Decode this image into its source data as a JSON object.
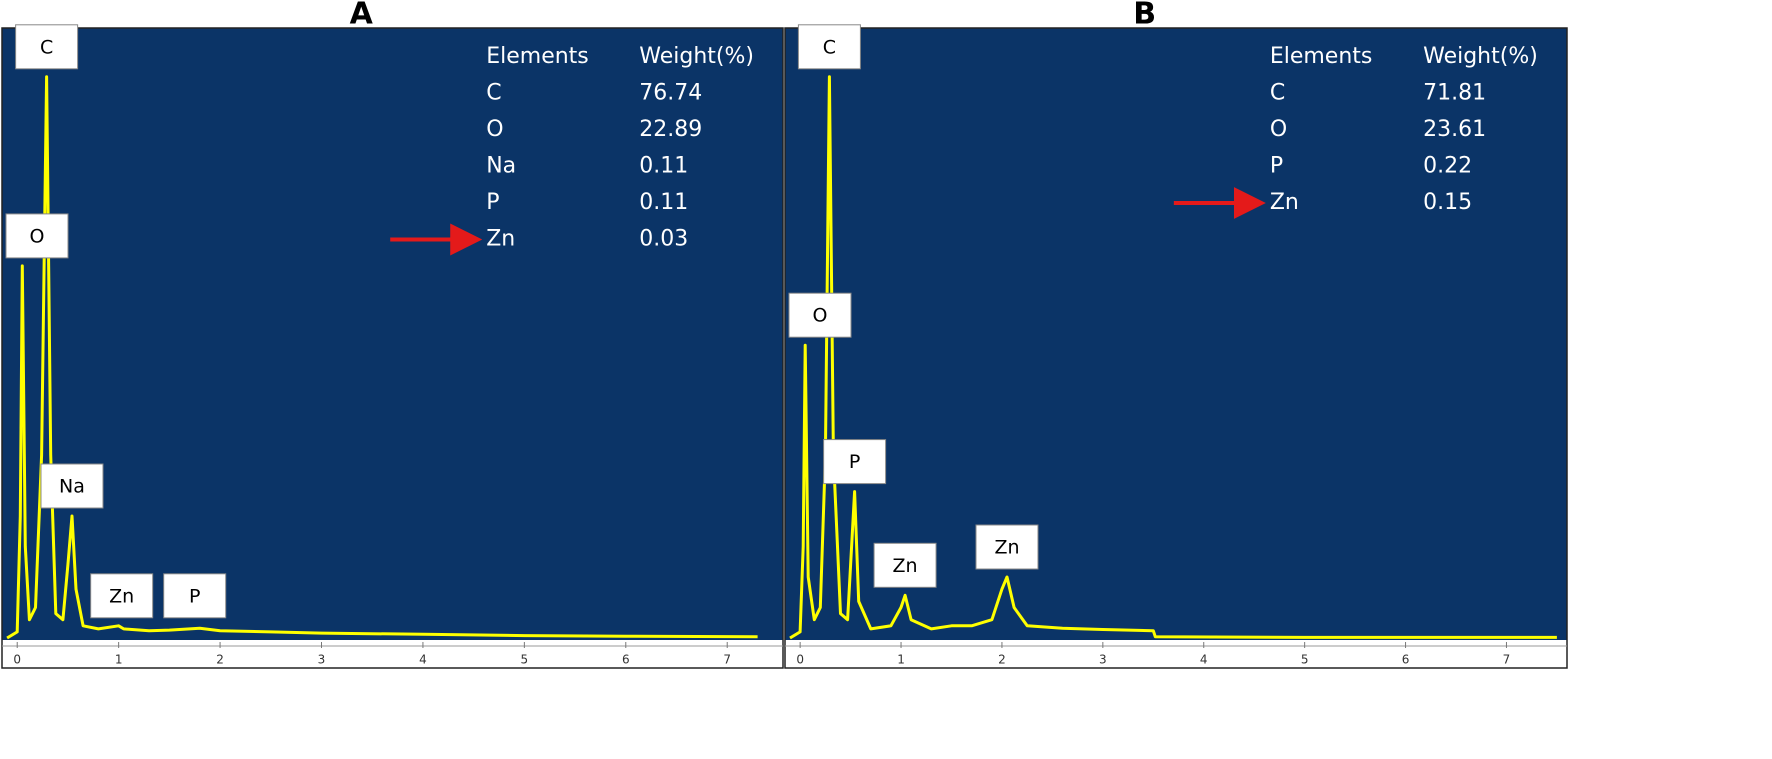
{
  "chart_data": [
    {
      "type": "spectrum",
      "title": "A",
      "color": "#ffff00",
      "xlim": [
        -0.15,
        7.55
      ],
      "xticks": [
        0,
        1,
        2,
        3,
        4,
        5,
        6,
        7
      ],
      "ylim": [
        0,
        100
      ],
      "x": [
        -0.1,
        0,
        0.03,
        0.05,
        0.08,
        0.12,
        0.18,
        0.24,
        0.29,
        0.33,
        0.38,
        0.45,
        0.5,
        0.54,
        0.58,
        0.65,
        0.8,
        1.0,
        1.05,
        1.3,
        1.5,
        1.8,
        2.0,
        2.5,
        3,
        4,
        5,
        6,
        7.3
      ],
      "values": [
        0,
        1,
        20,
        61,
        15,
        3,
        5,
        30,
        92,
        30,
        4,
        3,
        12,
        20,
        8,
        2,
        1.5,
        2,
        1.5,
        1.2,
        1.3,
        1.6,
        1.2,
        1,
        0.8,
        0.6,
        0.4,
        0.3,
        0.2
      ],
      "peaks": [
        {
          "label": "C",
          "x": 0.29,
          "y": 92
        },
        {
          "label": "O",
          "x": 0.05,
          "y": 61
        },
        {
          "label": "Na",
          "x": 0.54,
          "y": 20
        },
        {
          "label": "Zn",
          "x": 1.03,
          "y": 2
        },
        {
          "label": "P",
          "x": 1.75,
          "y": 2
        }
      ],
      "table": {
        "header": [
          "Elements",
          "Weight(%)"
        ],
        "rows": [
          [
            "C",
            76.74
          ],
          [
            "O",
            22.89
          ],
          [
            "Na",
            0.11
          ],
          [
            "P",
            0.11
          ],
          [
            "Zn",
            0.03
          ]
        ]
      }
    },
    {
      "type": "spectrum",
      "title": "B",
      "color": "#ffff00",
      "xlim": [
        -0.15,
        7.6
      ],
      "xticks": [
        0,
        1,
        2,
        3,
        4,
        5,
        6,
        7
      ],
      "ylim": [
        0,
        100
      ],
      "x": [
        -0.1,
        0,
        0.03,
        0.05,
        0.08,
        0.14,
        0.2,
        0.25,
        0.29,
        0.33,
        0.4,
        0.47,
        0.5,
        0.54,
        0.58,
        0.7,
        0.9,
        1.0,
        1.04,
        1.1,
        1.3,
        1.5,
        1.7,
        1.9,
        2.0,
        2.05,
        2.12,
        2.25,
        2.6,
        3.0,
        3.5,
        3.52,
        5,
        7.5
      ],
      "values": [
        0,
        1,
        15,
        48,
        10,
        3,
        5,
        30,
        92,
        30,
        4,
        3,
        12,
        24,
        6,
        1.5,
        2,
        5,
        7,
        3,
        1.5,
        2,
        2,
        3,
        8,
        10,
        5,
        2,
        1.6,
        1.4,
        1.2,
        0.2,
        0.1,
        0.1
      ],
      "peaks": [
        {
          "label": "C",
          "x": 0.29,
          "y": 92
        },
        {
          "label": "O",
          "x": 0.05,
          "y": 48
        },
        {
          "label": "P",
          "x": 0.54,
          "y": 24
        },
        {
          "label": "Zn",
          "x": 1.04,
          "y": 7
        },
        {
          "label": "Zn",
          "x": 2.05,
          "y": 10
        }
      ],
      "table": {
        "header": [
          "Elements",
          "Weight(%)"
        ],
        "rows": [
          [
            "C",
            71.81
          ],
          [
            "O",
            23.61
          ],
          [
            "P",
            0.22
          ],
          [
            "Zn",
            0.15
          ]
        ]
      }
    }
  ]
}
